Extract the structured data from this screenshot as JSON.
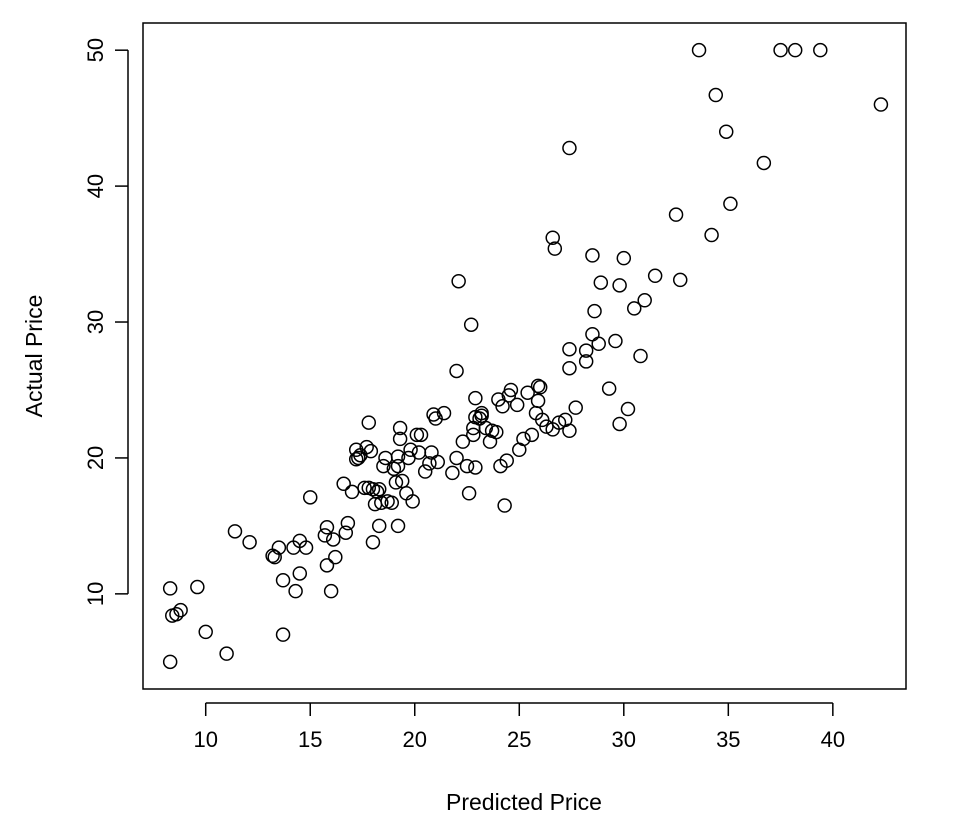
{
  "chart_data": {
    "type": "scatter",
    "title": "",
    "xlabel": "Predicted Price",
    "ylabel": "Actual Price",
    "xlim": [
      7,
      43.5
    ],
    "ylim": [
      3,
      52
    ],
    "x_ticks": [
      10,
      15,
      20,
      25,
      30,
      35,
      40
    ],
    "y_ticks": [
      10,
      20,
      30,
      40,
      50
    ],
    "x_tick_labels": [
      "10",
      "15",
      "20",
      "25",
      "30",
      "35",
      "40"
    ],
    "y_tick_labels": [
      "10",
      "20",
      "30",
      "40",
      "50"
    ],
    "grid": false,
    "marker": "open-circle",
    "points": [
      [
        8.3,
        10.4
      ],
      [
        8.4,
        8.4
      ],
      [
        8.6,
        8.5
      ],
      [
        8.8,
        8.8
      ],
      [
        8.3,
        5.0
      ],
      [
        9.6,
        10.5
      ],
      [
        10.0,
        7.2
      ],
      [
        11.0,
        5.6
      ],
      [
        11.4,
        14.6
      ],
      [
        12.1,
        13.8
      ],
      [
        13.2,
        12.8
      ],
      [
        13.3,
        12.7
      ],
      [
        13.5,
        13.4
      ],
      [
        13.7,
        11.0
      ],
      [
        13.7,
        7.0
      ],
      [
        14.2,
        13.4
      ],
      [
        14.3,
        10.2
      ],
      [
        14.5,
        13.9
      ],
      [
        14.5,
        11.5
      ],
      [
        14.8,
        13.4
      ],
      [
        15.0,
        17.1
      ],
      [
        15.7,
        14.3
      ],
      [
        15.8,
        14.9
      ],
      [
        15.8,
        12.1
      ],
      [
        16.0,
        10.2
      ],
      [
        16.1,
        14.0
      ],
      [
        16.2,
        12.7
      ],
      [
        16.6,
        18.1
      ],
      [
        16.8,
        15.2
      ],
      [
        16.7,
        14.5
      ],
      [
        17.0,
        17.5
      ],
      [
        17.2,
        20.6
      ],
      [
        17.2,
        19.9
      ],
      [
        17.3,
        20.0
      ],
      [
        17.4,
        20.2
      ],
      [
        17.6,
        17.8
      ],
      [
        17.7,
        20.8
      ],
      [
        17.8,
        22.6
      ],
      [
        17.8,
        17.8
      ],
      [
        17.9,
        20.5
      ],
      [
        18.0,
        17.7
      ],
      [
        18.0,
        13.8
      ],
      [
        18.1,
        16.6
      ],
      [
        18.2,
        17.5
      ],
      [
        18.3,
        17.7
      ],
      [
        18.3,
        15.0
      ],
      [
        18.4,
        16.7
      ],
      [
        18.5,
        19.4
      ],
      [
        18.6,
        20.0
      ],
      [
        18.7,
        16.8
      ],
      [
        18.9,
        16.7
      ],
      [
        19.0,
        19.2
      ],
      [
        19.1,
        18.2
      ],
      [
        19.2,
        19.4
      ],
      [
        19.2,
        20.1
      ],
      [
        19.3,
        21.4
      ],
      [
        19.3,
        22.2
      ],
      [
        19.2,
        15.0
      ],
      [
        19.4,
        18.3
      ],
      [
        19.6,
        17.4
      ],
      [
        19.7,
        20.0
      ],
      [
        19.8,
        20.6
      ],
      [
        19.9,
        16.8
      ],
      [
        20.1,
        21.7
      ],
      [
        20.2,
        20.4
      ],
      [
        20.3,
        21.7
      ],
      [
        20.5,
        19.0
      ],
      [
        20.7,
        19.6
      ],
      [
        20.8,
        20.4
      ],
      [
        20.9,
        23.2
      ],
      [
        21.0,
        22.9
      ],
      [
        21.1,
        19.7
      ],
      [
        21.4,
        23.3
      ],
      [
        21.8,
        18.9
      ],
      [
        22.0,
        20.0
      ],
      [
        22.0,
        26.4
      ],
      [
        22.1,
        33.0
      ],
      [
        22.3,
        21.2
      ],
      [
        22.5,
        19.4
      ],
      [
        22.6,
        17.4
      ],
      [
        22.7,
        29.8
      ],
      [
        22.8,
        22.2
      ],
      [
        22.8,
        21.7
      ],
      [
        22.9,
        24.4
      ],
      [
        22.9,
        23.0
      ],
      [
        22.9,
        19.3
      ],
      [
        23.1,
        22.9
      ],
      [
        23.2,
        23.3
      ],
      [
        23.2,
        23.1
      ],
      [
        23.4,
        22.2
      ],
      [
        23.6,
        21.2
      ],
      [
        23.7,
        22.0
      ],
      [
        23.9,
        21.9
      ],
      [
        24.0,
        24.3
      ],
      [
        24.1,
        19.4
      ],
      [
        24.2,
        23.8
      ],
      [
        24.3,
        16.5
      ],
      [
        24.4,
        19.8
      ],
      [
        24.5,
        24.6
      ],
      [
        24.6,
        25.0
      ],
      [
        24.9,
        23.9
      ],
      [
        25.0,
        20.6
      ],
      [
        25.2,
        21.4
      ],
      [
        25.4,
        24.8
      ],
      [
        25.6,
        21.7
      ],
      [
        25.8,
        23.3
      ],
      [
        25.9,
        25.3
      ],
      [
        25.9,
        24.2
      ],
      [
        26.0,
        25.2
      ],
      [
        26.1,
        22.8
      ],
      [
        26.3,
        22.3
      ],
      [
        26.6,
        22.1
      ],
      [
        26.6,
        36.2
      ],
      [
        26.7,
        35.4
      ],
      [
        26.9,
        22.6
      ],
      [
        27.2,
        22.8
      ],
      [
        27.4,
        28.0
      ],
      [
        27.4,
        26.6
      ],
      [
        27.4,
        22.0
      ],
      [
        27.4,
        42.8
      ],
      [
        27.7,
        23.7
      ],
      [
        28.2,
        27.9
      ],
      [
        28.2,
        27.1
      ],
      [
        28.5,
        29.1
      ],
      [
        28.5,
        34.9
      ],
      [
        28.6,
        30.8
      ],
      [
        28.8,
        28.4
      ],
      [
        28.9,
        32.9
      ],
      [
        29.3,
        25.1
      ],
      [
        29.6,
        28.6
      ],
      [
        29.8,
        32.7
      ],
      [
        29.8,
        22.5
      ],
      [
        30.0,
        34.7
      ],
      [
        30.2,
        23.6
      ],
      [
        30.5,
        31.0
      ],
      [
        30.8,
        27.5
      ],
      [
        31.0,
        31.6
      ],
      [
        31.5,
        33.4
      ],
      [
        32.5,
        37.9
      ],
      [
        32.7,
        33.1
      ],
      [
        33.6,
        50.0
      ],
      [
        34.2,
        36.4
      ],
      [
        34.4,
        46.7
      ],
      [
        34.9,
        44.0
      ],
      [
        35.1,
        38.7
      ],
      [
        36.7,
        41.7
      ],
      [
        37.5,
        50.0
      ],
      [
        38.2,
        50.0
      ],
      [
        39.4,
        50.0
      ],
      [
        42.3,
        46.0
      ]
    ]
  }
}
